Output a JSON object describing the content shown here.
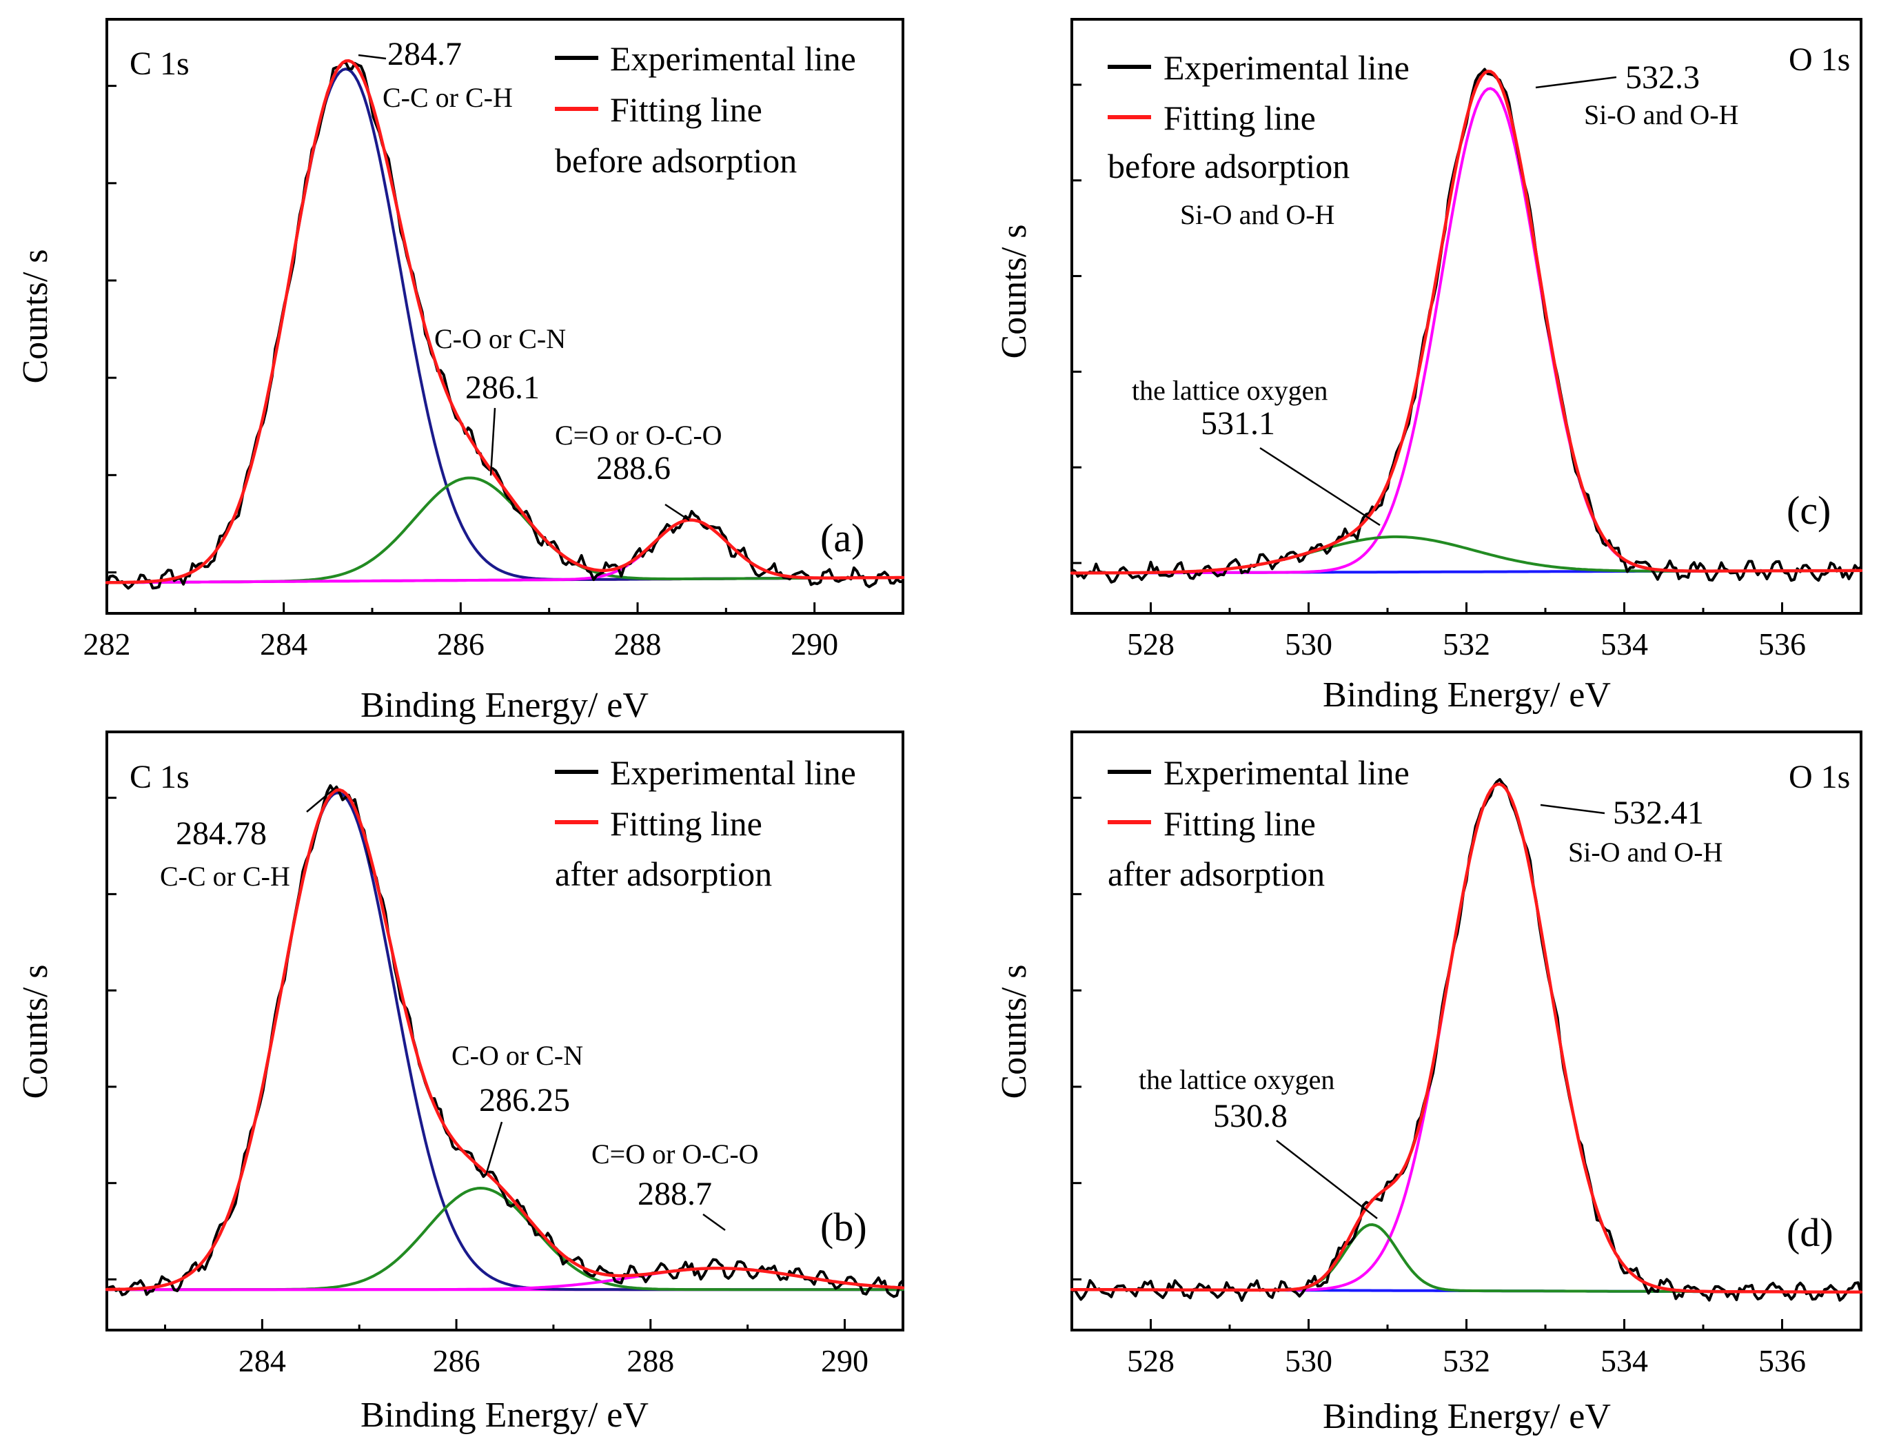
{
  "chart_data": [
    {
      "id": "a",
      "type": "line",
      "panel_tag": "(a)",
      "core_level": "C 1s",
      "xlabel": "Binding Energy/ eV",
      "ylabel": "Counts/ s",
      "xlim": [
        282,
        291
      ],
      "ylim": [
        -0.06,
        1.1
      ],
      "xticks": [
        282,
        284,
        286,
        288,
        290
      ],
      "xtick_labels": [
        "282",
        "284",
        "286",
        "288",
        "290"
      ],
      "legend": {
        "position": "top-right",
        "entries": [
          "Experimental line",
          "Fitting line"
        ],
        "note": "before adsorption"
      },
      "colors": {
        "experimental": "#000000",
        "fitting": "#ff1a1a",
        "baseline": "#ff00ff"
      },
      "baseline": {
        "x": [
          282,
          291
        ],
        "y": [
          0,
          0.01
        ]
      },
      "peaks": [
        {
          "center": 284.7,
          "height": 1.0,
          "sigma": 0.62,
          "color": "#1a1a8c"
        },
        {
          "center": 286.1,
          "height": 0.2,
          "sigma": 0.62,
          "color": "#228b22"
        },
        {
          "center": 288.6,
          "height": 0.115,
          "sigma": 0.42,
          "color": "#ff00ff"
        }
      ],
      "annotations": [
        {
          "value": "284.7",
          "species": "C-C or C-H",
          "peak_x": 284.7
        },
        {
          "value": "286.1",
          "species": "C-O or C-N",
          "peak_x": 286.2
        },
        {
          "value": "288.6",
          "species": "C=O or O-C-O",
          "peak_x": 288.6
        }
      ]
    },
    {
      "id": "b",
      "type": "line",
      "panel_tag": "(b)",
      "core_level": "C 1s",
      "xlabel": "Binding Energy/ eV",
      "ylabel": "Counts/ s",
      "xlim": [
        282.4,
        290.6
      ],
      "ylim": [
        -0.08,
        1.1
      ],
      "xticks": [
        284,
        286,
        288,
        290
      ],
      "xtick_labels": [
        "284",
        "286",
        "288",
        "290"
      ],
      "legend": {
        "position": "top-right",
        "entries": [
          "Experimental line",
          "Fitting line"
        ],
        "note": "after adsorption"
      },
      "colors": {
        "experimental": "#000000",
        "fitting": "#ff1a1a",
        "baseline": "#ff00ff"
      },
      "baseline": {
        "x": [
          282.4,
          290.6
        ],
        "y": [
          0,
          0
        ]
      },
      "peaks": [
        {
          "center": 284.78,
          "height": 0.98,
          "sigma": 0.58,
          "color": "#1a1a8c"
        },
        {
          "center": 286.25,
          "height": 0.2,
          "sigma": 0.55,
          "color": "#228b22"
        },
        {
          "center": 288.7,
          "height": 0.042,
          "sigma": 0.85,
          "color": "#ff00ff"
        }
      ],
      "annotations": [
        {
          "value": "284.78",
          "species": "C-C or C-H",
          "peak_x": 284.78
        },
        {
          "value": "286.25",
          "species": "C-O or C-N",
          "peak_x": 286.2
        },
        {
          "value": "288.7",
          "species": "C=O or O-C-O",
          "peak_x": 289.4
        }
      ]
    },
    {
      "id": "c",
      "type": "line",
      "panel_tag": "(c)",
      "core_level": "O 1s",
      "xlabel": "Binding Energy/ eV",
      "ylabel": "Counts/ s",
      "xlim": [
        527,
        537
      ],
      "ylim": [
        -0.08,
        1.1
      ],
      "xticks": [
        528,
        530,
        532,
        534,
        536
      ],
      "xtick_labels": [
        "528",
        "530",
        "532",
        "534",
        "536"
      ],
      "legend": {
        "position": "top-left",
        "entries": [
          "Experimental line",
          "Fitting line"
        ],
        "note": "before adsorption"
      },
      "legend_extra": "Si-O and O-H",
      "colors": {
        "experimental": "#000000",
        "fitting": "#ff1a1a",
        "baseline": "#1a1aff"
      },
      "baseline": {
        "x": [
          527,
          537
        ],
        "y": [
          0,
          0.005
        ]
      },
      "peaks": [
        {
          "center": 532.3,
          "height": 0.96,
          "sigma": 0.62,
          "color": "#ff00ff"
        },
        {
          "center": 531.1,
          "height": 0.07,
          "sigma": 1.0,
          "color": "#228b22"
        }
      ],
      "annotations": [
        {
          "value": "532.3",
          "species": "Si-O and O-H",
          "peak_x": 532.3
        },
        {
          "value": "531.1",
          "species": "the lattice oxygen",
          "peak_x": 531.2
        }
      ]
    },
    {
      "id": "d",
      "type": "line",
      "panel_tag": "(d)",
      "core_level": "O 1s",
      "xlabel": "Binding Energy/ eV",
      "ylabel": "Counts/ s",
      "xlim": [
        527,
        537
      ],
      "ylim": [
        -0.08,
        1.1
      ],
      "xticks": [
        528,
        530,
        532,
        534,
        536
      ],
      "xtick_labels": [
        "528",
        "530",
        "532",
        "534",
        "536"
      ],
      "legend": {
        "position": "top-left",
        "entries": [
          "Experimental line",
          "Fitting line"
        ],
        "note": "after adsorption"
      },
      "colors": {
        "experimental": "#000000",
        "fitting": "#ff1a1a",
        "baseline": "#1a1aff"
      },
      "baseline": {
        "x": [
          527,
          537
        ],
        "y": [
          0,
          -0.005
        ]
      },
      "peaks": [
        {
          "center": 532.41,
          "height": 1.0,
          "sigma": 0.65,
          "color": "#ff00ff"
        },
        {
          "center": 530.8,
          "height": 0.13,
          "sigma": 0.33,
          "color": "#228b22"
        }
      ],
      "annotations": [
        {
          "value": "532.41",
          "species": "Si-O and O-H",
          "peak_x": 532.41
        },
        {
          "value": "530.8",
          "species": "the lattice oxygen",
          "peak_x": 530.8
        }
      ]
    }
  ]
}
